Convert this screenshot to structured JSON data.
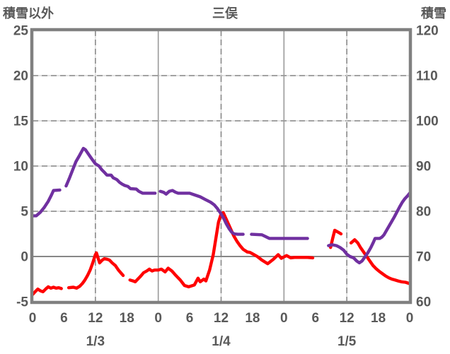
{
  "chart_data": {
    "type": "line",
    "title": "三俣",
    "left_axis": {
      "title": "積雪以外",
      "min": -5,
      "max": 25,
      "ticks": [
        25,
        20,
        15,
        10,
        5,
        0,
        -5
      ],
      "zero_line_value": 0
    },
    "right_axis": {
      "title": "積雪",
      "min": 60,
      "max": 120,
      "ticks": [
        120,
        110,
        100,
        90,
        80,
        70,
        60
      ]
    },
    "x_axis": {
      "min_hour": 0,
      "max_hour": 72,
      "hour_ticks": [
        {
          "hour": 0,
          "label": "0"
        },
        {
          "hour": 6,
          "label": "6"
        },
        {
          "hour": 12,
          "label": "12"
        },
        {
          "hour": 18,
          "label": "18"
        },
        {
          "hour": 24,
          "label": "0"
        },
        {
          "hour": 30,
          "label": "6"
        },
        {
          "hour": 36,
          "label": "12"
        },
        {
          "hour": 42,
          "label": "18"
        },
        {
          "hour": 48,
          "label": "0"
        },
        {
          "hour": 54,
          "label": "6"
        },
        {
          "hour": 60,
          "label": "12"
        },
        {
          "hour": 66,
          "label": "18"
        },
        {
          "hour": 72,
          "label": "0"
        }
      ],
      "date_labels": [
        {
          "hour": 12,
          "label": "1/3"
        },
        {
          "hour": 36,
          "label": "1/4"
        },
        {
          "hour": 60,
          "label": "1/5"
        }
      ],
      "solid_line_hours": [
        24,
        48
      ],
      "dashed_line_hours": [
        12,
        36,
        60
      ]
    },
    "grid": {
      "dashed_left_values": [
        20,
        15,
        10,
        5
      ]
    },
    "series": [
      {
        "name": "積雪以外",
        "axis": "left",
        "color": "#ff0000",
        "segments": [
          [
            [
              0,
              -4.2
            ],
            [
              0.5,
              -3.9
            ],
            [
              1,
              -3.6
            ],
            [
              1.5,
              -3.8
            ],
            [
              2,
              -3.9
            ],
            [
              2.5,
              -3.6
            ],
            [
              3,
              -3.35
            ],
            [
              3.5,
              -3.5
            ],
            [
              4,
              -3.4
            ],
            [
              4.5,
              -3.5
            ],
            [
              5,
              -3.45
            ],
            [
              5.5,
              -3.55
            ]
          ],
          [
            [
              6.9,
              -3.45
            ],
            [
              7.8,
              -3.4
            ],
            [
              8.4,
              -3.5
            ],
            [
              9,
              -3.3
            ],
            [
              9.5,
              -3.0
            ],
            [
              10,
              -2.6
            ],
            [
              10.5,
              -2.1
            ],
            [
              11,
              -1.5
            ],
            [
              11.5,
              -0.7
            ],
            [
              12,
              0.2
            ],
            [
              12.2,
              0.4
            ],
            [
              12.8,
              -0.7
            ],
            [
              13.3,
              -0.4
            ],
            [
              13.7,
              -0.25
            ],
            [
              14.2,
              -0.3
            ],
            [
              14.7,
              -0.4
            ],
            [
              15.2,
              -0.7
            ],
            [
              15.8,
              -1.0
            ],
            [
              16.4,
              -1.5
            ],
            [
              17,
              -1.9
            ],
            [
              17.3,
              -2.1
            ]
          ],
          [
            [
              18.6,
              -2.6
            ],
            [
              19.2,
              -2.7
            ],
            [
              19.6,
              -2.8
            ],
            [
              20.1,
              -2.5
            ],
            [
              20.6,
              -2.2
            ],
            [
              21.2,
              -1.8
            ],
            [
              21.8,
              -1.6
            ],
            [
              22.3,
              -1.4
            ],
            [
              22.8,
              -1.6
            ],
            [
              23.3,
              -1.5
            ],
            [
              24,
              -1.5
            ],
            [
              24.6,
              -1.4
            ],
            [
              25.3,
              -1.7
            ],
            [
              25.9,
              -1.3
            ],
            [
              26.6,
              -1.6
            ],
            [
              27.2,
              -2.0
            ],
            [
              28.2,
              -2.6
            ],
            [
              29,
              -3.2
            ],
            [
              29.8,
              -3.35
            ],
            [
              30.9,
              -3.15
            ],
            [
              31.6,
              -2.4
            ],
            [
              32,
              -2.8
            ],
            [
              32.7,
              -2.5
            ],
            [
              33.1,
              -2.7
            ],
            [
              33.8,
              -1.5
            ],
            [
              34.5,
              0.2
            ],
            [
              35,
              2.0
            ],
            [
              35.5,
              3.8
            ],
            [
              36,
              4.7
            ],
            [
              36.4,
              4.85
            ],
            [
              37,
              4.1
            ],
            [
              37.7,
              3.2
            ],
            [
              38.4,
              2.3
            ],
            [
              39,
              1.7
            ],
            [
              39.6,
              1.2
            ],
            [
              40.2,
              0.8
            ],
            [
              41,
              0.5
            ],
            [
              41.5,
              0.45
            ],
            [
              42,
              0.3
            ],
            [
              42.9,
              0.0
            ],
            [
              43.8,
              -0.4
            ],
            [
              44.9,
              -0.8
            ],
            [
              46,
              -0.3
            ],
            [
              46.9,
              0.2
            ],
            [
              47.5,
              -0.2
            ],
            [
              48.5,
              0.1
            ],
            [
              49.3,
              -0.15
            ],
            [
              50,
              -0.1
            ],
            [
              51.5,
              -0.1
            ],
            [
              52.5,
              -0.1
            ],
            [
              53.5,
              -0.15
            ]
          ],
          [
            [
              56.9,
              1.0
            ],
            [
              57.3,
              2.0
            ],
            [
              57.7,
              2.9
            ],
            [
              58.3,
              2.7
            ],
            [
              58.9,
              2.5
            ]
          ],
          [
            [
              60.8,
              1.5
            ],
            [
              61.5,
              1.85
            ],
            [
              62.1,
              1.5
            ],
            [
              62.6,
              1.0
            ],
            [
              63.2,
              0.5
            ],
            [
              63.8,
              0.0
            ],
            [
              64.4,
              -0.5
            ],
            [
              65,
              -1.0
            ],
            [
              65.6,
              -1.35
            ],
            [
              66.2,
              -1.65
            ],
            [
              66.8,
              -1.9
            ],
            [
              67.4,
              -2.15
            ],
            [
              68,
              -2.35
            ],
            [
              68.6,
              -2.5
            ],
            [
              69.2,
              -2.6
            ],
            [
              69.8,
              -2.7
            ],
            [
              70.4,
              -2.8
            ],
            [
              71.2,
              -2.85
            ],
            [
              72,
              -3.0
            ]
          ]
        ]
      },
      {
        "name": "積雪",
        "axis": "right",
        "color": "#7030a0",
        "segments": [
          [
            [
              0,
              79
            ],
            [
              0.7,
              79
            ],
            [
              1.5,
              79.8
            ],
            [
              2.2,
              80.8
            ],
            [
              3,
              82.2
            ],
            [
              3.6,
              83.6
            ],
            [
              4,
              84.6
            ],
            [
              5.2,
              84.7
            ]
          ],
          [
            [
              6.4,
              85.6
            ],
            [
              7,
              87.2
            ],
            [
              7.6,
              89
            ],
            [
              8.3,
              91
            ],
            [
              9,
              92.4
            ],
            [
              9.7,
              93.9
            ],
            [
              10.1,
              93.6
            ],
            [
              10.7,
              92.6
            ],
            [
              11.3,
              91.6
            ],
            [
              12,
              90.5
            ],
            [
              12.7,
              90
            ],
            [
              13.2,
              89.2
            ],
            [
              13.8,
              88.5
            ],
            [
              14.2,
              88
            ],
            [
              15,
              88
            ],
            [
              15.4,
              87.4
            ],
            [
              16.1,
              87
            ],
            [
              16.6,
              86.4
            ],
            [
              17.1,
              86
            ],
            [
              17.6,
              85.7
            ],
            [
              18.2,
              85.5
            ],
            [
              18.7,
              85
            ],
            [
              19.8,
              84.9
            ],
            [
              20.3,
              84.4
            ],
            [
              21,
              84
            ],
            [
              23.4,
              84
            ]
          ],
          [
            [
              24.4,
              84.4
            ],
            [
              25,
              84.2
            ],
            [
              25.5,
              83.8
            ],
            [
              26.1,
              84.4
            ],
            [
              26.7,
              84.6
            ],
            [
              27.3,
              84.2
            ],
            [
              27.8,
              84
            ],
            [
              30,
              84
            ],
            [
              31,
              83.6
            ],
            [
              32,
              83.2
            ],
            [
              33,
              82.6
            ],
            [
              34,
              82
            ],
            [
              34.7,
              81.4
            ],
            [
              35.3,
              80.6
            ],
            [
              36,
              79.4
            ],
            [
              36.5,
              78.4
            ],
            [
              37,
              77.2
            ],
            [
              37.5,
              76.2
            ],
            [
              38,
              75.4
            ],
            [
              38.5,
              75.0
            ],
            [
              39.2,
              74.9
            ],
            [
              40.2,
              74.9
            ]
          ],
          [
            [
              41.8,
              74.9
            ],
            [
              43.8,
              74.8
            ],
            [
              45.2,
              74.0
            ],
            [
              48,
              74.0
            ],
            [
              52.5,
              74.0
            ]
          ],
          [
            [
              56.5,
              72.4
            ],
            [
              57.2,
              72.6
            ],
            [
              58,
              72.4
            ],
            [
              58.7,
              72
            ],
            [
              59.4,
              71.4
            ],
            [
              60,
              70.5
            ],
            [
              60.6,
              70
            ],
            [
              61.3,
              69.7
            ],
            [
              61.9,
              69
            ],
            [
              62.4,
              68.6
            ],
            [
              62.9,
              69
            ],
            [
              63.4,
              69.8
            ],
            [
              64,
              70.8
            ],
            [
              64.6,
              72
            ],
            [
              65.1,
              73.2
            ],
            [
              65.4,
              74
            ],
            [
              66.3,
              74
            ],
            [
              66.7,
              74.3
            ],
            [
              67.1,
              74.8
            ],
            [
              67.6,
              75.8
            ],
            [
              68.1,
              76.8
            ],
            [
              68.6,
              77.8
            ],
            [
              69.1,
              78.8
            ],
            [
              69.6,
              79.9
            ],
            [
              70.1,
              81
            ],
            [
              70.6,
              82
            ],
            [
              71.1,
              82.8
            ],
            [
              71.6,
              83.4
            ],
            [
              72,
              84
            ]
          ]
        ]
      }
    ],
    "style_colors": {
      "axis_text": "#595959",
      "frame": "#808080",
      "gridline_dash": "#8a8a8a",
      "gridline_underlay": "#d9d9d9",
      "day_boundary_line": "#9a9a9a",
      "zero_line": "#878787"
    }
  }
}
